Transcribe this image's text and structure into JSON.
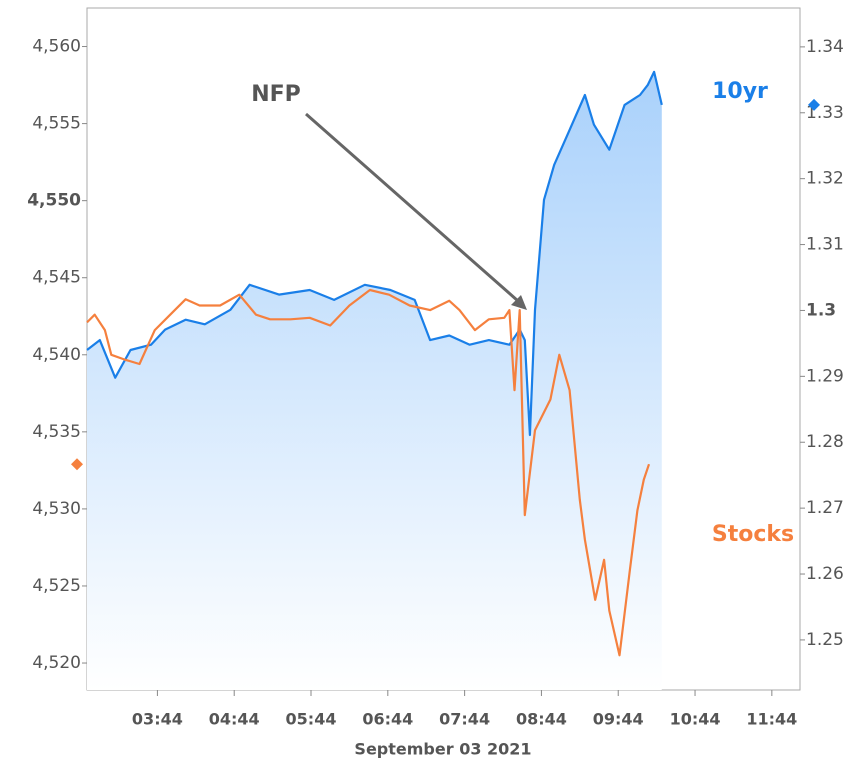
{
  "chart_data": {
    "type": "line",
    "xlabel": "September 03 2021",
    "xlim": [
      169,
      726
    ],
    "xticks": [
      {
        "value": 224,
        "label": "03:44"
      },
      {
        "value": 284,
        "label": "04:44"
      },
      {
        "value": 344,
        "label": "05:44"
      },
      {
        "value": 404,
        "label": "06:44"
      },
      {
        "value": 464,
        "label": "07:44"
      },
      {
        "value": 524,
        "label": "08:44"
      },
      {
        "value": 584,
        "label": "09:44"
      },
      {
        "value": 644,
        "label": "10:44"
      },
      {
        "value": 704,
        "label": "11:44"
      }
    ],
    "ylim": [
      4518.25,
      4562.5
    ],
    "yticks": [
      {
        "value": 4520,
        "label": "4,520"
      },
      {
        "value": 4525,
        "label": "4,525"
      },
      {
        "value": 4530,
        "label": "4,530"
      },
      {
        "value": 4535,
        "label": "4,535"
      },
      {
        "value": 4540,
        "label": "4,540"
      },
      {
        "value": 4545,
        "label": "4,545"
      },
      {
        "value": 4550,
        "label": "4,550"
      },
      {
        "value": 4555,
        "label": "4,555"
      },
      {
        "value": 4560,
        "label": "4,560"
      }
    ],
    "y2lim": [
      1.2424,
      1.3459
    ],
    "y2ticks": [
      1.25,
      1.26,
      1.27,
      1.28,
      1.29,
      1.3,
      1.31,
      1.32,
      1.33,
      1.34
    ],
    "highlight_ytick": 4550,
    "highlight_y2tick": 1.3,
    "annotation": "NFP",
    "series": [
      {
        "name": "10yr",
        "color": "#1a7fe8",
        "axis": "y2",
        "area": true,
        "x": [
          169,
          179,
          191,
          203,
          219,
          230,
          246,
          261,
          281,
          296,
          319,
          343,
          362,
          386,
          406,
          425,
          437,
          452,
          468,
          483,
          499,
          507,
          511,
          515,
          519,
          526,
          534,
          546,
          558,
          565,
          577,
          589,
          601,
          607,
          612,
          618
        ],
        "values": [
          1.294,
          1.2955,
          1.2898,
          1.294,
          1.2948,
          1.2971,
          1.2986,
          1.2979,
          1.3001,
          1.3039,
          1.3024,
          1.3031,
          1.3016,
          1.3039,
          1.3031,
          1.3016,
          1.2955,
          1.2962,
          1.2948,
          1.2955,
          1.2948,
          1.2971,
          1.2955,
          1.2811,
          1.3001,
          1.3168,
          1.3221,
          1.3274,
          1.3327,
          1.3282,
          1.3244,
          1.3312,
          1.3327,
          1.3342,
          1.3362,
          1.3312
        ]
      },
      {
        "name": "Stocks",
        "color": "#f5803e",
        "axis": "y",
        "x": [
          169,
          175,
          183,
          188,
          198,
          210,
          222,
          234,
          246,
          257,
          273,
          288,
          301,
          312,
          328,
          343,
          359,
          374,
          390,
          405,
          421,
          437,
          452,
          460,
          472,
          483,
          495,
          499,
          503,
          507,
          511,
          519,
          531,
          538,
          546,
          554,
          558,
          566,
          573,
          577,
          585,
          593,
          599,
          604,
          608
        ],
        "values": [
          4542.1,
          4542.6,
          4541.6,
          4540.0,
          4539.7,
          4539.4,
          4541.6,
          4542.6,
          4543.6,
          4543.2,
          4543.2,
          4543.9,
          4542.6,
          4542.3,
          4542.3,
          4542.4,
          4541.9,
          4543.2,
          4544.2,
          4543.9,
          4543.2,
          4542.9,
          4543.5,
          4542.9,
          4541.6,
          4542.3,
          4542.4,
          4542.9,
          4537.7,
          4542.9,
          4529.6,
          4535.1,
          4537.1,
          4540.0,
          4537.7,
          4530.6,
          4528.0,
          4524.1,
          4526.7,
          4523.4,
          4520.5,
          4526.0,
          4529.9,
          4531.9,
          4532.9
        ]
      }
    ]
  }
}
